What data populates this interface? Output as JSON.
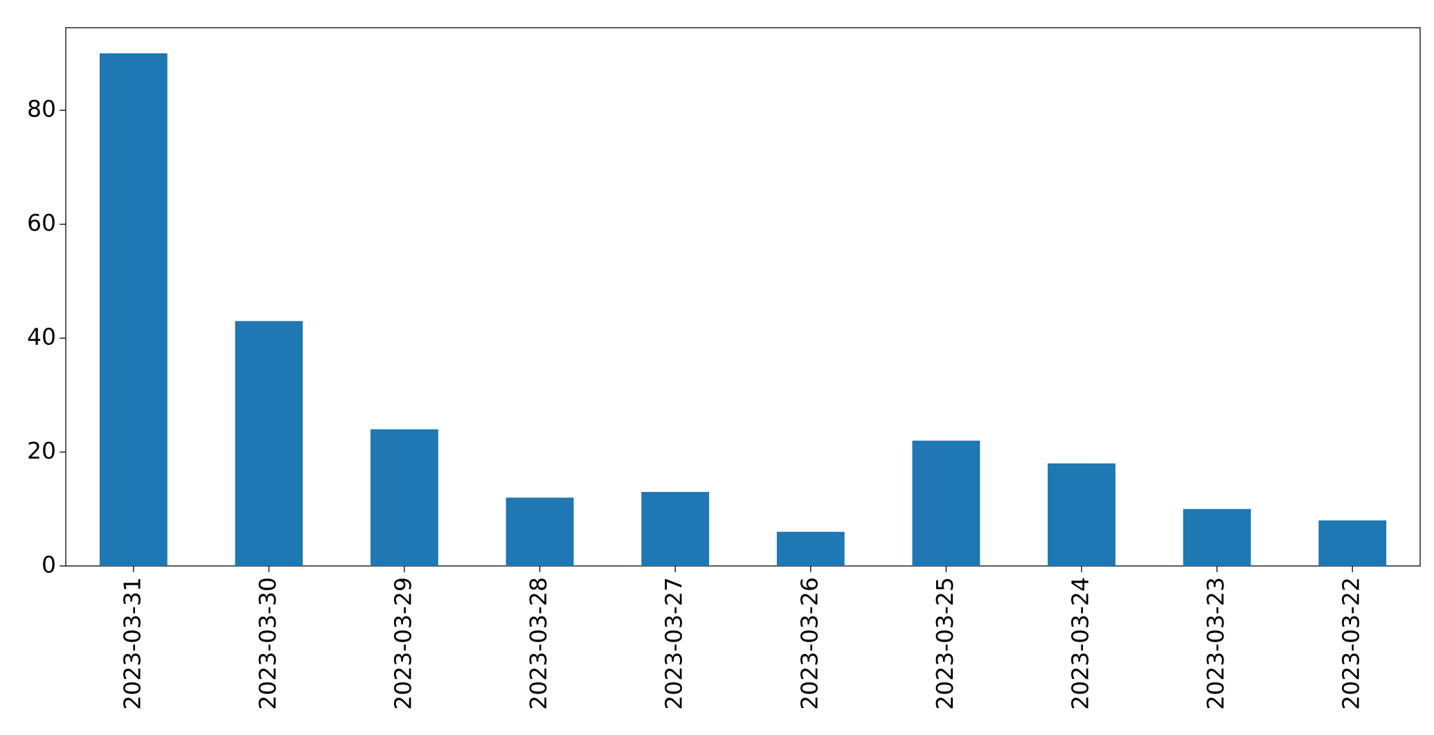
{
  "chart_data": {
    "type": "bar",
    "categories": [
      "2023-03-31",
      "2023-03-30",
      "2023-03-29",
      "2023-03-28",
      "2023-03-27",
      "2023-03-26",
      "2023-03-25",
      "2023-03-24",
      "2023-03-23",
      "2023-03-22"
    ],
    "values": [
      90,
      43,
      24,
      12,
      13,
      6,
      22,
      18,
      10,
      8
    ],
    "color": "#1f77b4",
    "ylim": [
      0,
      94.5
    ],
    "yticks": [
      0,
      20,
      40,
      60,
      80
    ],
    "grid": false
  }
}
